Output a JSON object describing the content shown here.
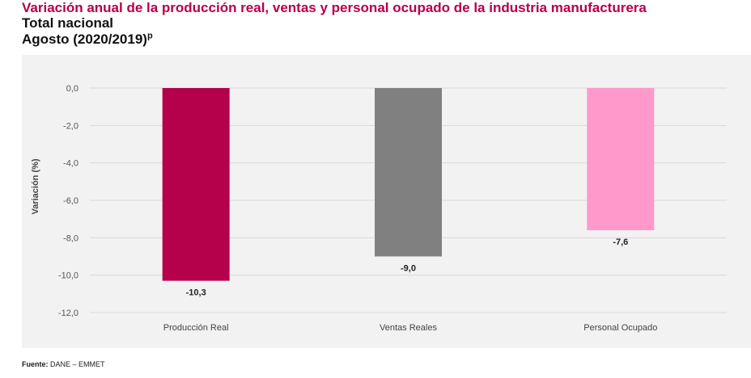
{
  "header": {
    "title": "Variación anual de la producción real, ventas y personal ocupado de la industria manufacturera",
    "subtitle": "Total nacional",
    "period": "Agosto (2020/2019)",
    "period_note": "p"
  },
  "source": {
    "label": "Fuente:",
    "text": "DANE – EMMET"
  },
  "chart_data": {
    "type": "bar",
    "categories": [
      "Producción Real",
      "Ventas Reales",
      "Personal Ocupado"
    ],
    "values": [
      -10.3,
      -9.0,
      -7.6
    ],
    "value_labels": [
      "-10,3",
      "-9,0",
      "-7,6"
    ],
    "colors": [
      "#b5004b",
      "#808080",
      "#ff99cc"
    ],
    "ylabel": "Variación (%)",
    "xlabel": "",
    "ylim": [
      -12,
      0
    ],
    "yticks": [
      0,
      -2,
      -4,
      -6,
      -8,
      -10,
      -12
    ],
    "ytick_labels": [
      "0,0",
      "-2,0",
      "-4,0",
      "-6,0",
      "-8,0",
      "-10,0",
      "-12,0"
    ],
    "grid": true,
    "legend": "none"
  }
}
